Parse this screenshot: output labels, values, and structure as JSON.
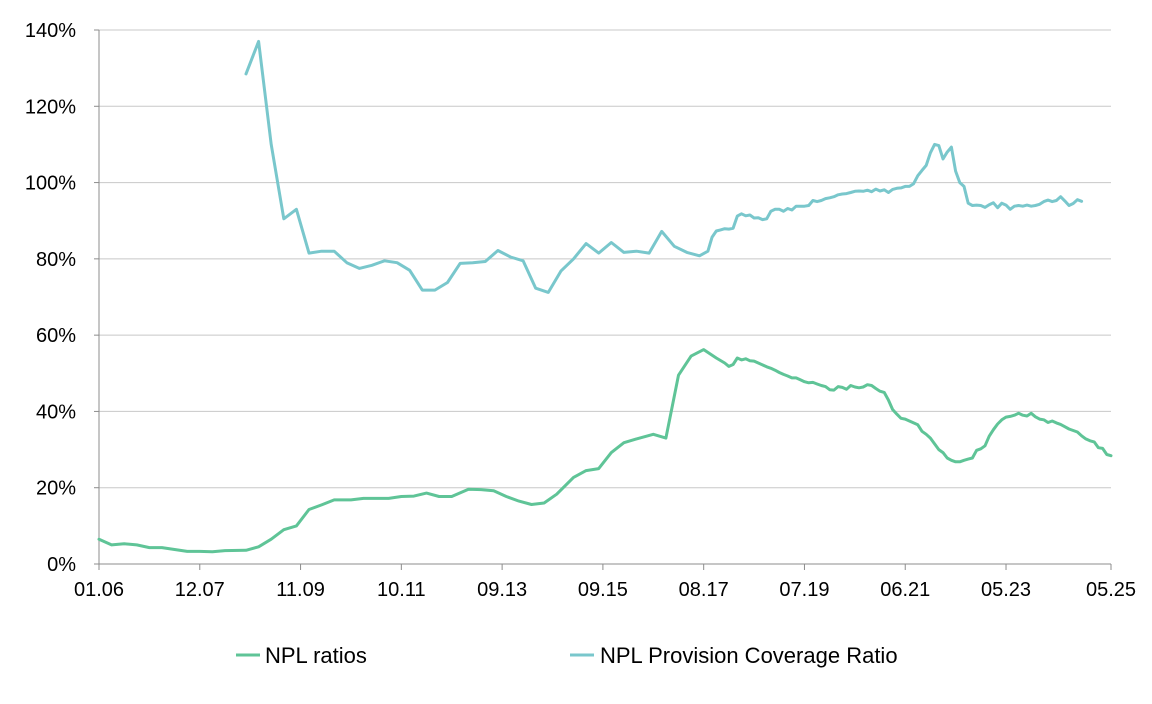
{
  "chart_data": {
    "type": "line",
    "title": "",
    "xlabel": "",
    "ylabel": "",
    "ylim": [
      0,
      140
    ],
    "yticks": [
      0,
      20,
      40,
      60,
      80,
      100,
      120,
      140
    ],
    "ytick_labels": [
      "0%",
      "20%",
      "40%",
      "60%",
      "80%",
      "100%",
      "120%",
      "140%"
    ],
    "xlim": [
      0,
      241
    ],
    "xticks": [
      0,
      24,
      48,
      72,
      96,
      120,
      144,
      168,
      192,
      216,
      241
    ],
    "xtick_labels": [
      "01.06",
      "12.07",
      "11.09",
      "10.11",
      "09.13",
      "09.15",
      "08.17",
      "07.19",
      "06.21",
      "05.23",
      "05.25"
    ],
    "grid": "horizontal",
    "legend": "bottom",
    "series": [
      {
        "name": "NPL ratios",
        "color": "#5fc497",
        "points": [
          [
            0,
            6.5
          ],
          [
            3,
            5
          ],
          [
            6,
            5.3
          ],
          [
            9,
            5
          ],
          [
            12,
            4.3
          ],
          [
            15,
            4.3
          ],
          [
            18,
            3.8
          ],
          [
            21,
            3.3
          ],
          [
            24,
            3.3
          ],
          [
            27,
            3.2
          ],
          [
            30,
            3.5
          ],
          [
            35,
            3.6
          ],
          [
            38,
            4.5
          ],
          [
            41,
            6.5
          ],
          [
            44,
            9
          ],
          [
            47,
            10
          ],
          [
            50,
            14.3
          ],
          [
            53,
            15.5
          ],
          [
            56,
            16.8
          ],
          [
            60,
            16.8
          ],
          [
            63,
            17.2
          ],
          [
            66,
            17.2
          ],
          [
            69,
            17.2
          ],
          [
            72,
            17.7
          ],
          [
            75,
            17.8
          ],
          [
            78,
            18.6
          ],
          [
            81,
            17.7
          ],
          [
            84,
            17.7
          ],
          [
            88,
            19.6
          ],
          [
            91,
            19.5
          ],
          [
            94,
            19.2
          ],
          [
            97,
            17.7
          ],
          [
            100,
            16.5
          ],
          [
            103,
            15.6
          ],
          [
            106,
            16
          ],
          [
            109,
            18.3
          ],
          [
            113,
            22.7
          ],
          [
            116,
            24.5
          ],
          [
            119,
            25
          ],
          [
            122,
            29.2
          ],
          [
            125,
            31.8
          ],
          [
            128,
            32.8
          ],
          [
            132,
            34
          ],
          [
            135,
            33
          ],
          [
            138,
            49.5
          ],
          [
            141,
            54.5
          ],
          [
            144,
            56.2
          ],
          [
            147,
            54
          ],
          [
            149,
            52.7
          ],
          [
            150,
            51.8
          ],
          [
            151,
            52.3
          ],
          [
            152,
            54
          ],
          [
            153,
            53.5
          ],
          [
            154,
            53.8
          ],
          [
            155,
            53.3
          ],
          [
            156,
            53.2
          ],
          [
            157,
            52.7
          ],
          [
            158,
            52.2
          ],
          [
            159,
            51.7
          ],
          [
            160,
            51.3
          ],
          [
            161,
            50.8
          ],
          [
            162,
            50.2
          ],
          [
            163,
            49.7
          ],
          [
            164,
            49.3
          ],
          [
            165,
            48.8
          ],
          [
            166,
            48.8
          ],
          [
            167,
            48.3
          ],
          [
            168,
            47.8
          ],
          [
            169,
            47.5
          ],
          [
            170,
            47.6
          ],
          [
            171,
            47.2
          ],
          [
            172,
            46.8
          ],
          [
            173,
            46.5
          ],
          [
            174,
            45.7
          ],
          [
            175,
            45.6
          ],
          [
            176,
            46.5
          ],
          [
            177,
            46.3
          ],
          [
            178,
            45.8
          ],
          [
            179,
            46.8
          ],
          [
            180,
            46.4
          ],
          [
            181,
            46.2
          ],
          [
            182,
            46.4
          ],
          [
            183,
            47
          ],
          [
            184,
            46.8
          ],
          [
            185,
            46
          ],
          [
            186,
            45.3
          ],
          [
            187,
            45
          ],
          [
            188,
            43
          ],
          [
            189,
            40.5
          ],
          [
            190,
            39.3
          ],
          [
            191,
            38.2
          ],
          [
            192,
            38
          ],
          [
            193,
            37.5
          ],
          [
            194,
            37
          ],
          [
            195,
            36.5
          ],
          [
            196,
            34.8
          ],
          [
            197,
            34
          ],
          [
            198,
            33
          ],
          [
            199,
            31.5
          ],
          [
            200,
            30
          ],
          [
            201,
            29.2
          ],
          [
            202,
            27.8
          ],
          [
            203,
            27.2
          ],
          [
            204,
            26.8
          ],
          [
            205,
            26.8
          ],
          [
            206,
            27.2
          ],
          [
            207,
            27.5
          ],
          [
            208,
            27.8
          ],
          [
            209,
            29.8
          ],
          [
            210,
            30.2
          ],
          [
            211,
            31
          ],
          [
            212,
            33.5
          ],
          [
            213,
            35.2
          ],
          [
            214,
            36.7
          ],
          [
            215,
            37.8
          ],
          [
            216,
            38.5
          ],
          [
            217,
            38.7
          ],
          [
            218,
            39
          ],
          [
            219,
            39.5
          ],
          [
            220,
            39
          ],
          [
            221,
            38.8
          ],
          [
            222,
            39.5
          ],
          [
            223,
            38.6
          ],
          [
            224,
            38
          ],
          [
            225,
            37.8
          ],
          [
            226,
            37.1
          ],
          [
            227,
            37.5
          ],
          [
            228,
            37
          ],
          [
            229,
            36.6
          ],
          [
            230,
            36
          ],
          [
            231,
            35.4
          ],
          [
            232,
            35
          ],
          [
            233,
            34.6
          ],
          [
            234,
            33.6
          ],
          [
            235,
            32.8
          ],
          [
            236,
            32.3
          ],
          [
            237,
            32
          ],
          [
            238,
            30.5
          ],
          [
            239,
            30.3
          ],
          [
            240,
            28.7
          ],
          [
            241,
            28.4
          ]
        ]
      },
      {
        "name": "NPL Provision Coverage Ratio",
        "color": "#79c7cc",
        "points": [
          [
            35,
            128.5
          ],
          [
            38,
            137
          ],
          [
            41,
            110
          ],
          [
            44,
            90.5
          ],
          [
            47,
            93
          ],
          [
            50,
            81.5
          ],
          [
            53,
            82
          ],
          [
            56,
            82
          ],
          [
            59,
            79
          ],
          [
            62,
            77.5
          ],
          [
            65,
            78.3
          ],
          [
            68,
            79.5
          ],
          [
            71,
            79
          ],
          [
            74,
            77
          ],
          [
            77,
            71.8
          ],
          [
            80,
            71.8
          ],
          [
            83,
            73.8
          ],
          [
            86,
            78.8
          ],
          [
            89,
            79
          ],
          [
            92,
            79.3
          ],
          [
            95,
            82.2
          ],
          [
            98,
            80.5
          ],
          [
            101,
            79.5
          ],
          [
            104,
            72.3
          ],
          [
            107,
            71.2
          ],
          [
            110,
            76.8
          ],
          [
            113,
            80
          ],
          [
            116,
            84
          ],
          [
            119,
            81.5
          ],
          [
            122,
            84.3
          ],
          [
            125,
            81.7
          ],
          [
            128,
            82
          ],
          [
            131,
            81.5
          ],
          [
            134,
            87.2
          ],
          [
            137,
            83.3
          ],
          [
            140,
            81.7
          ],
          [
            143,
            80.8
          ],
          [
            145,
            82
          ],
          [
            146,
            85.7
          ],
          [
            147,
            87.3
          ],
          [
            148,
            87.6
          ],
          [
            149,
            87.9
          ],
          [
            150,
            87.8
          ],
          [
            151,
            88
          ],
          [
            152,
            91.2
          ],
          [
            153,
            91.8
          ],
          [
            154,
            91.3
          ],
          [
            155,
            91.5
          ],
          [
            156,
            90.7
          ],
          [
            157,
            90.8
          ],
          [
            158,
            90.3
          ],
          [
            159,
            90.5
          ],
          [
            160,
            92.5
          ],
          [
            161,
            93
          ],
          [
            162,
            93
          ],
          [
            163,
            92.5
          ],
          [
            164,
            93.2
          ],
          [
            165,
            92.8
          ],
          [
            166,
            93.8
          ],
          [
            167,
            93.8
          ],
          [
            168,
            93.8
          ],
          [
            169,
            94
          ],
          [
            170,
            95.3
          ],
          [
            171,
            95
          ],
          [
            172,
            95.3
          ],
          [
            173,
            95.8
          ],
          [
            174,
            96
          ],
          [
            175,
            96.3
          ],
          [
            176,
            96.8
          ],
          [
            177,
            97
          ],
          [
            178,
            97.1
          ],
          [
            179,
            97.4
          ],
          [
            180,
            97.7
          ],
          [
            181,
            97.8
          ],
          [
            182,
            97.7
          ],
          [
            183,
            98
          ],
          [
            184,
            97.6
          ],
          [
            185,
            98.3
          ],
          [
            186,
            97.8
          ],
          [
            187,
            98.1
          ],
          [
            188,
            97.4
          ],
          [
            189,
            98.2
          ],
          [
            190,
            98.5
          ],
          [
            191,
            98.6
          ],
          [
            192,
            99
          ],
          [
            193,
            99
          ],
          [
            194,
            99.7
          ],
          [
            195,
            101.8
          ],
          [
            196,
            103.2
          ],
          [
            197,
            104.5
          ],
          [
            198,
            107.8
          ],
          [
            199,
            110
          ],
          [
            200,
            109.7
          ],
          [
            201,
            106.2
          ],
          [
            202,
            108
          ],
          [
            203,
            109.3
          ],
          [
            204,
            103
          ],
          [
            205,
            100
          ],
          [
            206,
            99
          ],
          [
            207,
            94.6
          ],
          [
            208,
            94
          ],
          [
            209,
            94.1
          ],
          [
            210,
            94
          ],
          [
            211,
            93.5
          ],
          [
            212,
            94.2
          ],
          [
            213,
            94.7
          ],
          [
            214,
            93.4
          ],
          [
            215,
            94.6
          ],
          [
            216,
            94.1
          ],
          [
            217,
            93
          ],
          [
            218,
            93.8
          ],
          [
            219,
            94
          ],
          [
            220,
            93.8
          ],
          [
            221,
            94.1
          ],
          [
            222,
            93.8
          ],
          [
            223,
            94
          ],
          [
            224,
            94.3
          ],
          [
            225,
            95
          ],
          [
            226,
            95.4
          ],
          [
            227,
            95
          ],
          [
            228,
            95.3
          ],
          [
            229,
            96.3
          ],
          [
            230,
            95.2
          ],
          [
            231,
            94
          ],
          [
            232,
            94.5
          ],
          [
            233,
            95.5
          ],
          [
            234,
            95.1
          ]
        ]
      }
    ]
  }
}
